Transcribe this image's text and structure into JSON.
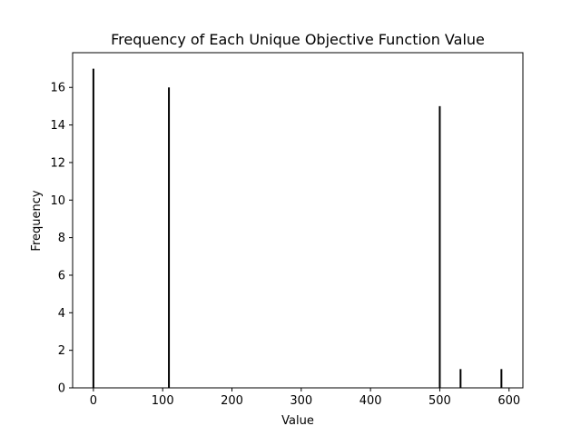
{
  "chart_data": {
    "type": "bar",
    "title": "Frequency of Each Unique Objective Function Value",
    "xlabel": "Value",
    "ylabel": "Frequency",
    "xlim": [
      -30,
      620
    ],
    "ylim": [
      0,
      17.85
    ],
    "xticks": [
      0,
      100,
      200,
      300,
      400,
      500,
      600
    ],
    "yticks": [
      0,
      2,
      4,
      6,
      8,
      10,
      12,
      14,
      16
    ],
    "grid": false,
    "bar_color": "#000000",
    "points": [
      {
        "x": 0,
        "y": 17
      },
      {
        "x": 109,
        "y": 16
      },
      {
        "x": 500,
        "y": 15
      },
      {
        "x": 530,
        "y": 1
      },
      {
        "x": 589,
        "y": 1
      }
    ]
  }
}
